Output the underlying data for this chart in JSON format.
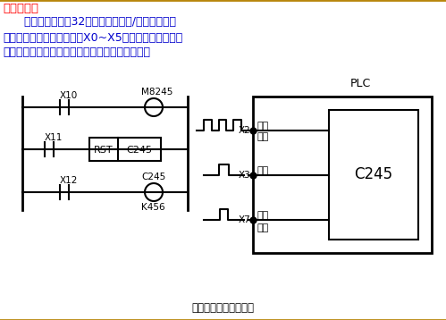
{
  "title_text": "编程软元件",
  "title_color": "#FF0000",
  "body_text_line1": "      高速计数器也是32位停电保持型增/减计数器，但",
  "body_text_line2": "它们只对特定的输入端子（X0~X5）的脉冲进行计数。",
  "body_text_line3": "高速计数器采用终端方式处理，与扫描周期无关。",
  "body_text_color": "#0000CD",
  "caption": "单相单输入高速计数器",
  "caption_color": "#000000",
  "bg_color": "#FFFFFF",
  "diagram_color": "#000000",
  "border_color": "#B8860B",
  "plc_label": "PLC",
  "c245_label": "C245",
  "rst_label": "RST",
  "x10_label": "X10",
  "x11_label": "X11",
  "x12_label": "X12",
  "m8245_label": "M8245",
  "c245_coil_label": "C245",
  "k456_label": "K456",
  "x2_label": "X2",
  "x3_label": "X3",
  "x7_label": "X7",
  "gaoshu_label": "高速",
  "maichong_label": "脉冲",
  "fuwei_label": "复位",
  "qidong_label": "启动"
}
